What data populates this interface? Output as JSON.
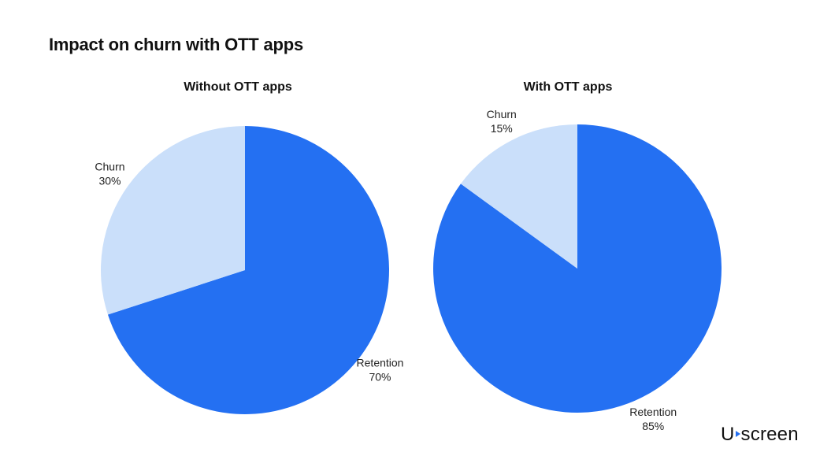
{
  "page": {
    "title": "Impact on churn with OTT apps"
  },
  "logo": {
    "text_left": "U",
    "text_right": "screen"
  },
  "colors": {
    "retention": "#2470f2",
    "churn": "#cadffa"
  },
  "chart_data": [
    {
      "type": "pie",
      "title": "Without OTT apps",
      "slices": [
        {
          "label": "Retention",
          "value": 70,
          "value_label": "70%",
          "color": "#2470f2"
        },
        {
          "label": "Churn",
          "value": 30,
          "value_label": "30%",
          "color": "#cadffa"
        }
      ]
    },
    {
      "type": "pie",
      "title": "With OTT apps",
      "slices": [
        {
          "label": "Retention",
          "value": 85,
          "value_label": "85%",
          "color": "#2470f2"
        },
        {
          "label": "Churn",
          "value": 15,
          "value_label": "15%",
          "color": "#cadffa"
        }
      ]
    }
  ]
}
